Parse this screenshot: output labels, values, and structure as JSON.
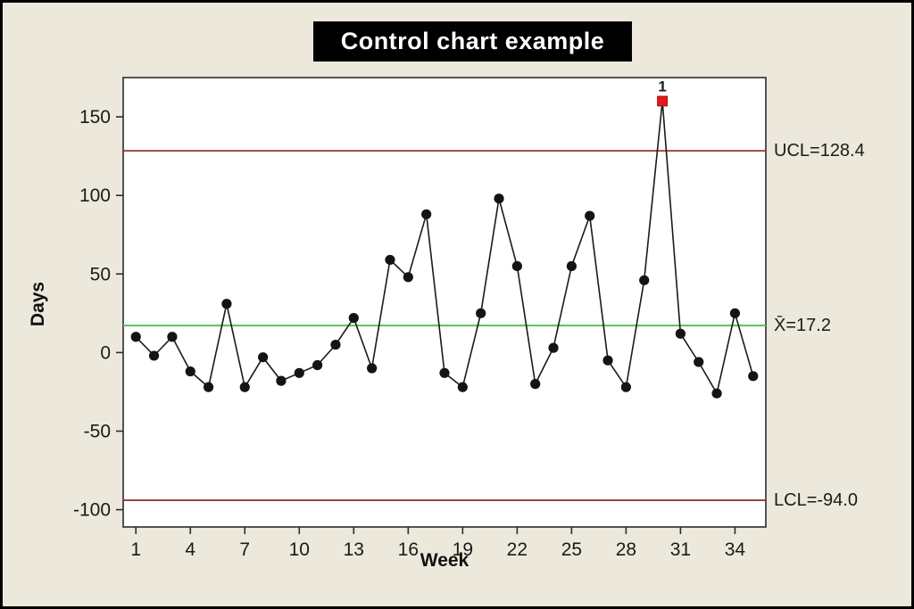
{
  "title": "Control chart example",
  "chart_data": {
    "type": "line",
    "title": "Control chart example",
    "xlabel": "Week",
    "ylabel": "Days",
    "x": [
      1,
      2,
      3,
      4,
      5,
      6,
      7,
      8,
      9,
      10,
      11,
      12,
      13,
      14,
      15,
      16,
      17,
      18,
      19,
      20,
      21,
      22,
      23,
      24,
      25,
      26,
      27,
      28,
      29,
      30,
      31,
      32,
      33,
      34,
      35
    ],
    "values": [
      10,
      -2,
      10,
      -12,
      -22,
      31,
      -22,
      -3,
      -18,
      -13,
      -8,
      5,
      22,
      -10,
      59,
      48,
      88,
      -13,
      -22,
      25,
      98,
      55,
      -20,
      3,
      55,
      87,
      -5,
      -22,
      46,
      160,
      12,
      -6,
      -26,
      25,
      -15
    ],
    "center_line": {
      "label": "X̄=17.2",
      "value": 17.2,
      "color": "#5dc85d"
    },
    "ucl": {
      "label": "UCL=128.4",
      "value": 128.4,
      "color": "#953735"
    },
    "lcl": {
      "label": "LCL=-94.0",
      "value": -94.0,
      "color": "#953735"
    },
    "out_of_control_points": [
      {
        "x": 30,
        "y": 160,
        "label": "1"
      }
    ],
    "x_ticks": [
      1,
      4,
      7,
      10,
      13,
      16,
      19,
      22,
      25,
      28,
      31,
      34
    ],
    "y_ticks": [
      150,
      100,
      50,
      0,
      -50,
      -100
    ],
    "xlim": [
      0.3,
      35.7
    ],
    "ylim": [
      -111,
      175
    ],
    "grid": false,
    "legend": "none",
    "line_color": "#1a1a1a",
    "marker_color": "#141414",
    "out_marker_color": "#e31a1a",
    "plot_bg": "#ffffff",
    "outer_bg": "#ece8db"
  }
}
